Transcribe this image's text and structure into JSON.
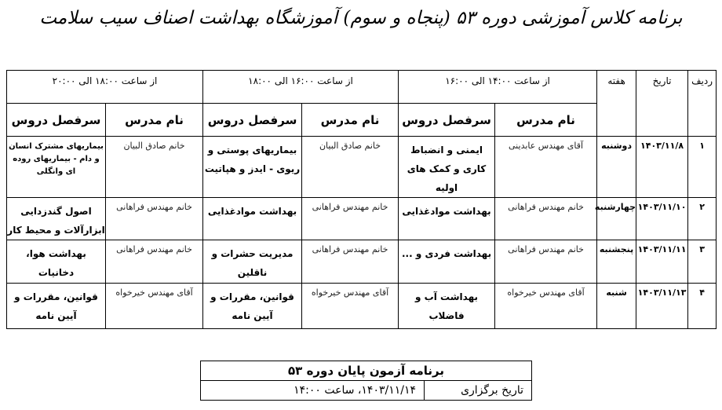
{
  "title": "برنامه کلاس آموزشی دوره ۵۳ (پنجاه و سوم) آموزشگاه بهداشت اصناف سیب سلامت",
  "schedule": {
    "headers": {
      "row": "ردیف",
      "date": "تاریخ",
      "day": "هفته",
      "teacher": "نام مدرس",
      "topic": "سرفصل دروس"
    },
    "slots": [
      "از ساعت ۱۴:۰۰ الی ۱۶:۰۰",
      "از ساعت ۱۶:۰۰ الی ۱۸:۰۰",
      "از ساعت ۱۸:۰۰ الی ۲۰:۰۰"
    ],
    "rows": [
      {
        "n": "۱",
        "date": "۱۴۰۳/۱۱/۸",
        "day": "دوشنبه",
        "s": [
          {
            "teacher": "آقای مهندس عابدینی",
            "topic": "ایمنی و انضباط کاری و کمک های اولیه"
          },
          {
            "teacher": "خانم صادق البیان",
            "topic": "بیماریهای پوستی و ریوی - ایدز و هپاتیت"
          },
          {
            "teacher": "خانم صادق البیان",
            "topic": "بیماریهای مشترک انسان و دام - بیماریهای روده ای وانگلی"
          }
        ]
      },
      {
        "n": "۲",
        "date": "۱۴۰۳/۱۱/۱۰",
        "day": "چهارشنبه",
        "s": [
          {
            "teacher": "خانم مهندس فراهانی",
            "topic": "بهداشت موادغذایی"
          },
          {
            "teacher": "خانم مهندس فراهانی",
            "topic": "بهداشت موادغذایی"
          },
          {
            "teacher": "خانم مهندس فراهانی",
            "topic": "اصول گندزدایی ابزارآلات و محیط کار"
          }
        ]
      },
      {
        "n": "۳",
        "date": "۱۴۰۳/۱۱/۱۱",
        "day": "پنجشنبه",
        "s": [
          {
            "teacher": "خانم مهندس فراهانی",
            "topic": "بهداشت فردی و ..."
          },
          {
            "teacher": "خانم مهندس فراهانی",
            "topic": "مدیریت حشرات و ناقلین"
          },
          {
            "teacher": "خانم مهندس فراهانی",
            "topic": "بهداشت هوا، دخانیات"
          }
        ]
      },
      {
        "n": "۴",
        "date": "۱۴۰۳/۱۱/۱۳",
        "day": "شنبه",
        "s": [
          {
            "teacher": "آقای مهندس خیرخواه",
            "topic": "بهداشت آب و فاضلاب"
          },
          {
            "teacher": "آقای مهندس خیرخواه",
            "topic": "قوانین، مقررات و آیین نامه"
          },
          {
            "teacher": "آقای مهندس خیرخواه",
            "topic": "قوانین، مقررات و آیین نامه"
          }
        ]
      }
    ]
  },
  "exam": {
    "title": "برنامه آزمون پایان دوره ۵۳",
    "label": "تاریخ برگزاری",
    "value": "۱۴۰۳/۱۱/۱۴، ساعت ۱۴:۰۰"
  }
}
